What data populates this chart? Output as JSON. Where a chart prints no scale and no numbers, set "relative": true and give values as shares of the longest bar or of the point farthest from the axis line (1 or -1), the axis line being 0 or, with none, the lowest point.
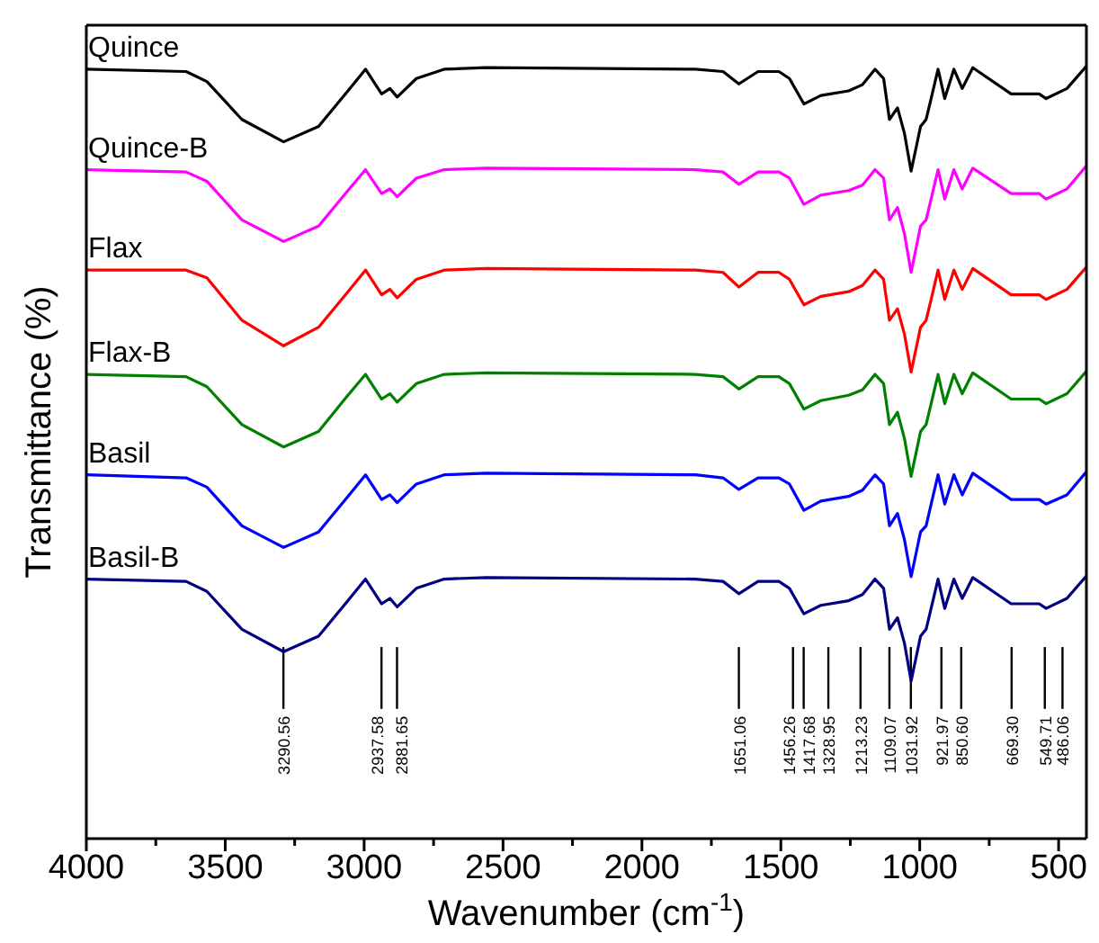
{
  "chart_data": {
    "type": "line",
    "xlabel": "Wavenumber (cm$^{-1}$)",
    "ylabel": "Transmittance (%)",
    "relative": true,
    "xlim": [
      4000,
      400
    ],
    "xticks": [
      4000,
      {
        "value": 3750,
        "label": null
      },
      3500,
      {
        "value": 3250,
        "label": null
      },
      3000,
      {
        "value": 2750,
        "label": null
      },
      2500,
      {
        "value": 2250,
        "label": null
      },
      2000,
      {
        "value": 1750,
        "label": null
      },
      1500,
      {
        "value": 1250,
        "label": null
      },
      1000,
      {
        "value": 750,
        "label": null
      },
      500
    ],
    "x": [
      4000,
      3641,
      3566,
      3440,
      3290,
      3164,
      3063,
      2995,
      2937,
      2907,
      2881,
      2812,
      2712,
      2561,
      1808,
      1708,
      1651,
      1582,
      1507,
      1469,
      1417,
      1356,
      1256,
      1206,
      1161,
      1130,
      1109,
      1080,
      1055,
      1031,
      997,
      977,
      959,
      934,
      910,
      877,
      847,
      809,
      671,
      570,
      545,
      470,
      400
    ],
    "series": [
      {
        "name": "Quince",
        "color": "#000000",
        "values": [
          0.996,
          0.993,
          0.98,
          0.931,
          0.902,
          0.922,
          0.966,
          0.996,
          0.964,
          0.971,
          0.96,
          0.984,
          0.996,
          0.998,
          0.996,
          0.993,
          0.977,
          0.993,
          0.993,
          0.984,
          0.951,
          0.962,
          0.968,
          0.976,
          0.996,
          0.984,
          0.931,
          0.946,
          0.913,
          0.864,
          0.922,
          0.931,
          0.958,
          0.996,
          0.958,
          0.996,
          0.971,
          0.998,
          0.964,
          0.964,
          0.958,
          0.971,
          1
        ]
      },
      {
        "name": "Quince-B",
        "color": "#ff00ff",
        "values": [
          0.866,
          0.863,
          0.851,
          0.801,
          0.773,
          0.793,
          0.837,
          0.866,
          0.835,
          0.841,
          0.831,
          0.855,
          0.866,
          0.868,
          0.866,
          0.863,
          0.847,
          0.863,
          0.863,
          0.855,
          0.821,
          0.833,
          0.839,
          0.846,
          0.866,
          0.855,
          0.801,
          0.817,
          0.783,
          0.733,
          0.793,
          0.801,
          0.828,
          0.866,
          0.828,
          0.866,
          0.841,
          0.868,
          0.835,
          0.835,
          0.828,
          0.841,
          0.871
        ]
      },
      {
        "name": "Flax",
        "color": "#ff0000",
        "values": [
          0.736,
          0.736,
          0.726,
          0.671,
          0.638,
          0.662,
          0.706,
          0.736,
          0.704,
          0.711,
          0.7,
          0.724,
          0.736,
          0.738,
          0.736,
          0.733,
          0.714,
          0.733,
          0.733,
          0.724,
          0.691,
          0.702,
          0.708,
          0.716,
          0.736,
          0.724,
          0.671,
          0.686,
          0.653,
          0.604,
          0.662,
          0.671,
          0.698,
          0.736,
          0.698,
          0.736,
          0.711,
          0.738,
          0.704,
          0.704,
          0.698,
          0.711,
          0.74
        ]
      },
      {
        "name": "Flax-B",
        "color": "#008000",
        "values": [
          0.601,
          0.598,
          0.585,
          0.536,
          0.507,
          0.527,
          0.572,
          0.601,
          0.569,
          0.576,
          0.565,
          0.589,
          0.601,
          0.603,
          0.601,
          0.598,
          0.582,
          0.598,
          0.598,
          0.589,
          0.556,
          0.567,
          0.574,
          0.581,
          0.601,
          0.589,
          0.536,
          0.552,
          0.518,
          0.469,
          0.527,
          0.536,
          0.563,
          0.601,
          0.563,
          0.601,
          0.576,
          0.603,
          0.569,
          0.569,
          0.563,
          0.576,
          0.605
        ]
      },
      {
        "name": "Basil",
        "color": "#0000ff",
        "values": [
          0.471,
          0.467,
          0.455,
          0.405,
          0.377,
          0.397,
          0.441,
          0.471,
          0.439,
          0.445,
          0.435,
          0.459,
          0.471,
          0.473,
          0.471,
          0.467,
          0.452,
          0.467,
          0.467,
          0.459,
          0.425,
          0.437,
          0.443,
          0.451,
          0.471,
          0.459,
          0.405,
          0.421,
          0.387,
          0.339,
          0.397,
          0.405,
          0.433,
          0.471,
          0.433,
          0.471,
          0.445,
          0.473,
          0.439,
          0.439,
          0.433,
          0.445,
          0.475
        ]
      },
      {
        "name": "Basil-B",
        "color": "#000080",
        "values": [
          0.336,
          0.333,
          0.32,
          0.271,
          0.242,
          0.262,
          0.306,
          0.336,
          0.304,
          0.311,
          0.3,
          0.324,
          0.336,
          0.338,
          0.336,
          0.333,
          0.317,
          0.333,
          0.333,
          0.324,
          0.291,
          0.302,
          0.308,
          0.316,
          0.336,
          0.324,
          0.271,
          0.286,
          0.253,
          0.204,
          0.262,
          0.271,
          0.298,
          0.336,
          0.298,
          0.336,
          0.311,
          0.338,
          0.304,
          0.304,
          0.298,
          0.311,
          0.34
        ]
      }
    ],
    "ref_lines": [
      {
        "axis": "x",
        "value": 3290.56,
        "label": "3290.56",
        "color": "#000000"
      },
      {
        "axis": "x",
        "value": 2937.58,
        "label": "2937.58",
        "color": "#000000"
      },
      {
        "axis": "x",
        "value": 2881.65,
        "label": "2881.65",
        "color": "#000000"
      },
      {
        "axis": "x",
        "value": 1651.06,
        "label": "1651.06",
        "color": "#000000"
      },
      {
        "axis": "x",
        "value": 1456.26,
        "label": "1456.26",
        "color": "#000000"
      },
      {
        "axis": "x",
        "value": 1417.68,
        "label": "1417.68",
        "color": "#000000"
      },
      {
        "axis": "x",
        "value": 1328.95,
        "label": "1328.95",
        "color": "#000000"
      },
      {
        "axis": "x",
        "value": 1213.23,
        "label": "1213.23",
        "color": "#000000"
      },
      {
        "axis": "x",
        "value": 1109.07,
        "label": "1109.07",
        "color": "#000000"
      },
      {
        "axis": "x",
        "value": 1031.92,
        "label": "1031.92",
        "color": "#000000"
      },
      {
        "axis": "x",
        "value": 921.97,
        "label": "921.97",
        "color": "#000000"
      },
      {
        "axis": "x",
        "value": 850.6,
        "label": "850.60",
        "color": "#000000"
      },
      {
        "axis": "x",
        "value": 669.3,
        "label": "669.30",
        "color": "#000000"
      },
      {
        "axis": "x",
        "value": 549.71,
        "label": "549.71",
        "color": "#000000"
      },
      {
        "axis": "x",
        "value": 486.06,
        "label": "486.06",
        "color": "#000000"
      }
    ],
    "grid": false,
    "legend": false,
    "marker": "none",
    "line_style": "solid"
  }
}
